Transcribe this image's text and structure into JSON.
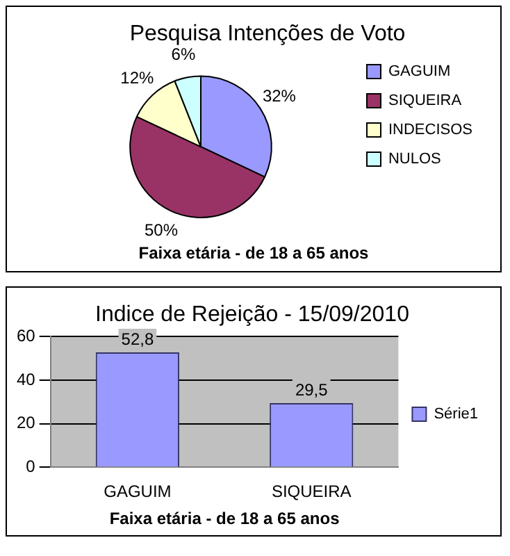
{
  "chart_data": [
    {
      "type": "pie",
      "title": "Pesquisa Intenções de Voto",
      "categories": [
        "GAGUIM",
        "SIQUEIRA",
        "INDECISOS",
        "NULOS"
      ],
      "values": [
        32,
        50,
        12,
        6
      ],
      "colors": [
        "#9999ff",
        "#993366",
        "#ffffcc",
        "#ccffff"
      ],
      "value_labels": [
        "32%",
        "50%",
        "12%",
        "6%"
      ],
      "legend": "right",
      "annotations": [
        "Faixa etária - de 18 a 65 anos"
      ]
    },
    {
      "type": "bar",
      "title": "Indice de Rejeição - 15/09/2010",
      "categories": [
        "GAGUIM",
        "SIQUEIRA"
      ],
      "xlabel": "Faixa etária - de 18 a 65 anos",
      "series": [
        {
          "name": "Série1",
          "color": "#9999ff",
          "values": [
            52.8,
            29.5
          ],
          "value_labels": [
            "52,8",
            "29,5"
          ]
        }
      ],
      "ylim": [
        0,
        60
      ],
      "yticks": [
        0,
        20,
        40,
        60
      ],
      "grid": "y",
      "legend": "right"
    }
  ]
}
